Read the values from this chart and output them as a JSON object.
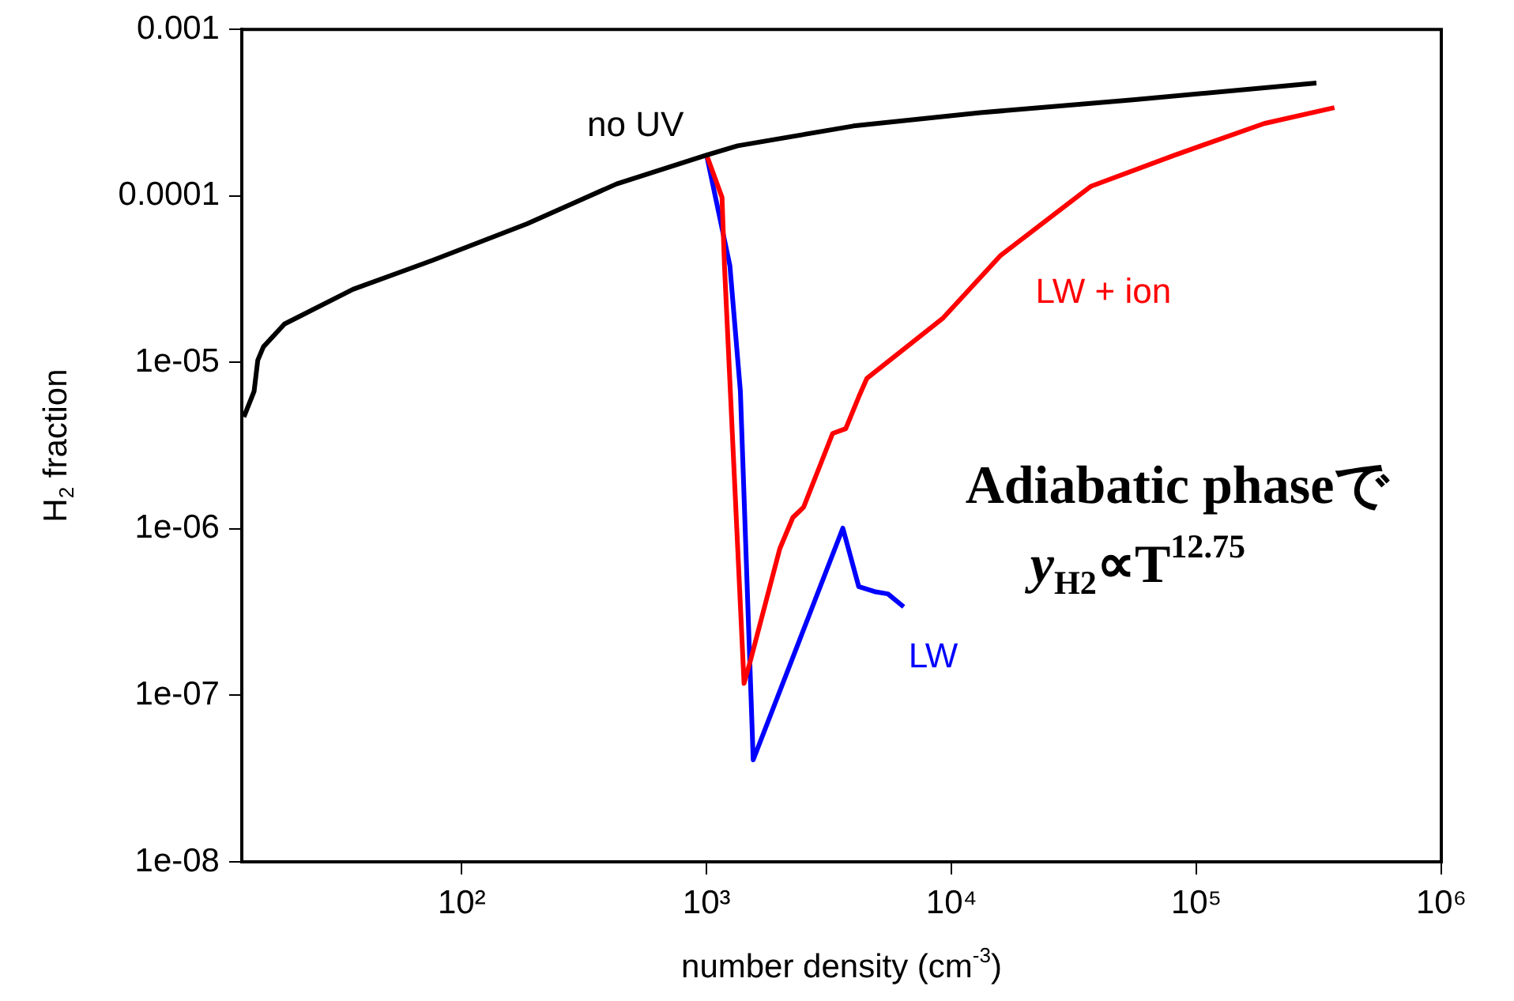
{
  "chart_data": {
    "type": "line",
    "xlabel": "number density (cm$^{-3}$)",
    "ylabel": "H$_{2}$ fraction",
    "log": "xy",
    "grid": false,
    "legend": false,
    "marker": "none",
    "xlim": [
      12.65,
      1000000
    ],
    "ylim": [
      1e-08,
      0.001
    ],
    "xticks": [
      {
        "value": 100,
        "label": "10²"
      },
      {
        "value": 1000,
        "label": "10³"
      },
      {
        "value": 10000,
        "label": "10⁴"
      },
      {
        "value": 100000,
        "label": "10⁵"
      },
      {
        "value": 1000000,
        "label": "10⁶"
      }
    ],
    "yticks": [
      {
        "value": 1e-08,
        "label": "1e-08"
      },
      {
        "value": 1e-07,
        "label": "1e-07"
      },
      {
        "value": 1e-06,
        "label": "1e-06"
      },
      {
        "value": 1e-05,
        "label": "1e-05"
      },
      {
        "value": 0.0001,
        "label": "0.0001"
      },
      {
        "value": 0.001,
        "label": "0.001"
      }
    ],
    "series": [
      {
        "name": "no UV",
        "color": "#000000",
        "x": [
          12.9,
          14.2,
          14.7,
          15.5,
          18.9,
          36,
          76,
          185,
          429,
          1000,
          1340,
          3980,
          13100,
          55000,
          309000
        ],
        "values": [
          4.7e-06,
          6.7e-06,
          1.03e-05,
          1.24e-05,
          1.7e-05,
          2.75e-05,
          4.1e-05,
          6.8e-05,
          0.000118,
          0.000176,
          0.0002,
          0.000263,
          0.000316,
          0.000378,
          0.000476
        ]
      },
      {
        "name": "LW + ion",
        "color": "#ff0000",
        "x": [
          1000,
          1156,
          1183,
          1422,
          1514,
          1990,
          2250,
          2490,
          3270,
          3700,
          4180,
          4510,
          9250,
          15900,
          37000,
          81700,
          189000,
          366000
        ],
        "values": [
          0.000176,
          9.8e-05,
          3.8e-05,
          1.18e-07,
          1.64e-07,
          7.6e-07,
          1.17e-06,
          1.35e-06,
          3.74e-06,
          4e-06,
          6.2e-06,
          8e-06,
          1.85e-05,
          4.4e-05,
          0.000114,
          0.000176,
          0.000272,
          0.000339
        ]
      },
      {
        "name": "LW",
        "color": "#0000ff",
        "x": [
          1000,
          1245,
          1374,
          1550,
          3600,
          4180,
          4850,
          5500,
          6380
        ],
        "values": [
          0.000176,
          3.8e-05,
          6.7e-06,
          4.1e-08,
          1.01e-06,
          4.5e-07,
          4.2e-07,
          4.07e-07,
          3.4e-07
        ]
      }
    ],
    "annotations": [
      "Adiabatic phaseで",
      "y$_{H2}$∝T$^{12.75}$"
    ]
  }
}
